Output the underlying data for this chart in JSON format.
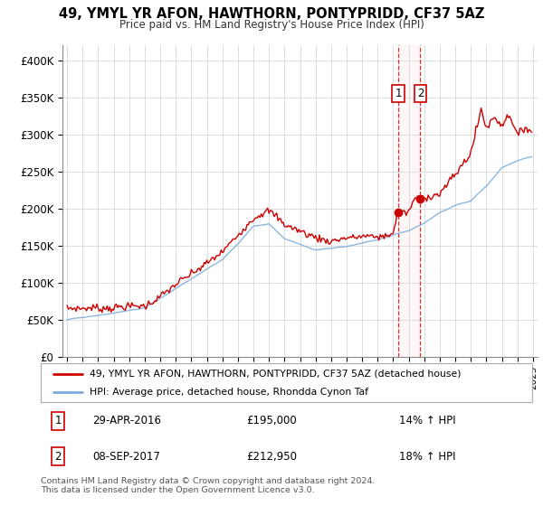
{
  "title": "49, YMYL YR AFON, HAWTHORN, PONTYPRIDD, CF37 5AZ",
  "subtitle": "Price paid vs. HM Land Registry's House Price Index (HPI)",
  "ylabel_ticks": [
    "£0",
    "£50K",
    "£100K",
    "£150K",
    "£200K",
    "£250K",
    "£300K",
    "£350K",
    "£400K"
  ],
  "ytick_values": [
    0,
    50000,
    100000,
    150000,
    200000,
    250000,
    300000,
    350000,
    400000
  ],
  "ylim": [
    0,
    420000
  ],
  "line1_color": "#cc0000",
  "line2_color": "#7aabdb",
  "vline_color": "#cc0000",
  "vfill_color": "#ffcccc",
  "marker_color": "#cc0000",
  "annotation_box_color": "#cc0000",
  "legend_line1": "49, YMYL YR AFON, HAWTHORN, PONTYPRIDD, CF37 5AZ (detached house)",
  "legend_line2": "HPI: Average price, detached house, Rhondda Cynon Taf",
  "annotation1_num": "1",
  "annotation1_date": "29-APR-2016",
  "annotation1_price": "£195,000",
  "annotation1_hpi": "14% ↑ HPI",
  "annotation2_num": "2",
  "annotation2_date": "08-SEP-2017",
  "annotation2_price": "£212,950",
  "annotation2_hpi": "18% ↑ HPI",
  "footer": "Contains HM Land Registry data © Crown copyright and database right 2024.\nThis data is licensed under the Open Government Licence v3.0.",
  "start_year": 1995,
  "end_year": 2025
}
